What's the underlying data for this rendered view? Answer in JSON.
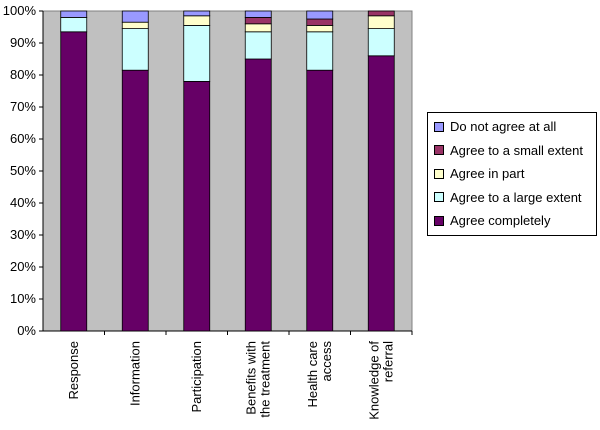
{
  "chart_data": {
    "type": "bar",
    "stacked": true,
    "percent": true,
    "categories": [
      "Response",
      "Information",
      "Participation",
      "Benefits with the treatment",
      "Health care access",
      "Knowledge of referral"
    ],
    "category_lines": [
      [
        "Response"
      ],
      [
        "Information"
      ],
      [
        "Participation"
      ],
      [
        "Benefits with",
        "the treatment"
      ],
      [
        "Health care",
        "access"
      ],
      [
        "Knowledge of",
        "referral"
      ]
    ],
    "series": [
      {
        "name": "Agree completely",
        "color": "#660066",
        "values": [
          93.5,
          81.5,
          78,
          85,
          81.5,
          86
        ]
      },
      {
        "name": "Agree to a large extent",
        "color": "#ccffff",
        "values": [
          4.5,
          13,
          17.5,
          8.5,
          12,
          8.5
        ]
      },
      {
        "name": "Agree in part",
        "color": "#ffffcc",
        "values": [
          0,
          2,
          3,
          2.5,
          2,
          4
        ]
      },
      {
        "name": "Agree to a small extent",
        "color": "#993366",
        "values": [
          0,
          0,
          0,
          2,
          2,
          1.5
        ]
      },
      {
        "name": "Do not agree at all",
        "color": "#9999ff",
        "values": [
          2,
          3.5,
          1.5,
          2,
          2.5,
          0
        ]
      }
    ],
    "legend_order": [
      "Do not agree at all",
      "Agree to a small extent",
      "Agree in part",
      "Agree to a large extent",
      "Agree completely"
    ],
    "yticks": [
      "0%",
      "10%",
      "20%",
      "30%",
      "40%",
      "50%",
      "60%",
      "70%",
      "80%",
      "90%",
      "100%"
    ],
    "ylim": [
      0,
      100
    ],
    "plot_background": "#c0c0c0",
    "legend_position": "right",
    "title": "",
    "xlabel": "",
    "ylabel": ""
  }
}
